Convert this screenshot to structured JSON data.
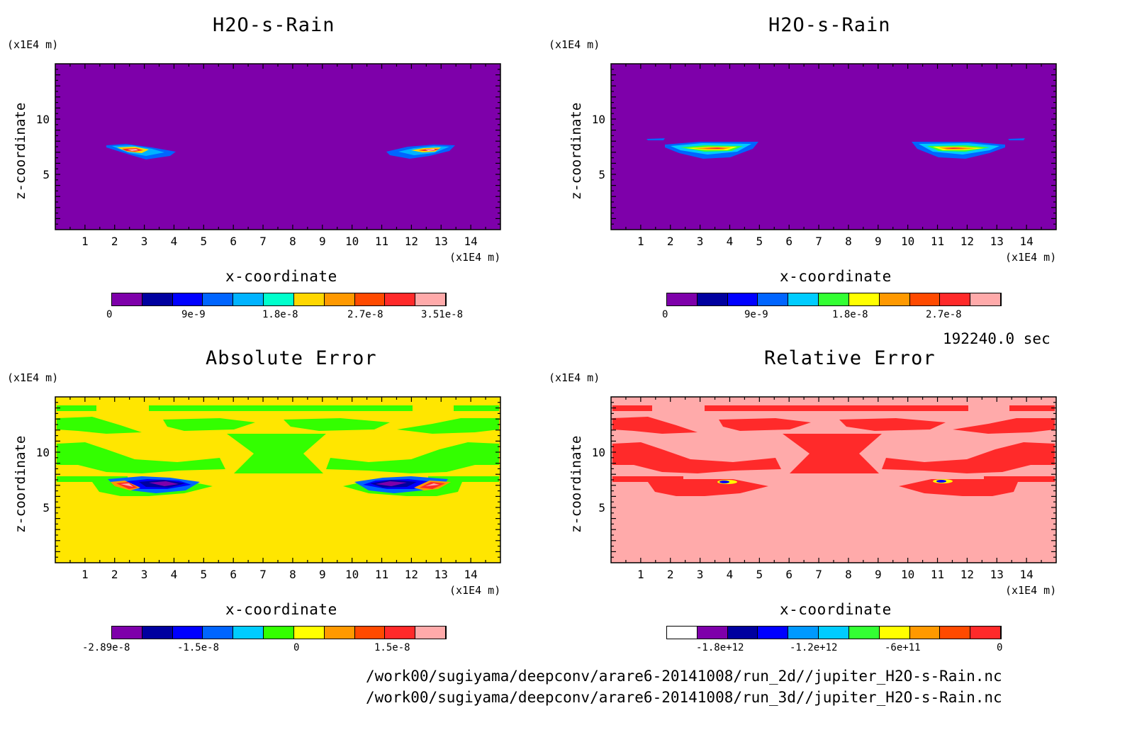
{
  "chart_data": [
    {
      "type": "heatmap",
      "title": "H2O-s-Rain",
      "xlabel": "x-coordinate",
      "ylabel": "z-coordinate",
      "x_unit": "(x1E4 m)",
      "y_unit": "(x1E4 m)",
      "xlim": [
        0,
        15
      ],
      "ylim": [
        0,
        15
      ],
      "x_ticks": [
        "1",
        "2",
        "3",
        "4",
        "5",
        "6",
        "7",
        "8",
        "9",
        "10",
        "11",
        "12",
        "13",
        "14"
      ],
      "y_ticks": [
        "5",
        "10"
      ],
      "background_color": "#7e00aa",
      "colorbar": {
        "colors": [
          "#7e00aa",
          "#00009f",
          "#0000ff",
          "#0065ff",
          "#00b3ff",
          "#00ffcc",
          "#ffd700",
          "#ff9900",
          "#ff4a00",
          "#ff2a2a",
          "#ffaaaa"
        ],
        "tick_labels": [
          "0",
          "9e-9",
          "1.8e-8",
          "2.7e-8",
          "3.51e-8"
        ]
      },
      "features": [
        {
          "x_center": 3.0,
          "z": 7.0,
          "x_range": [
            1.7,
            4.0
          ],
          "z_range": [
            6.3,
            7.7
          ],
          "peak": "3.51e-8"
        },
        {
          "x_center": 12.3,
          "z": 7.0,
          "x_range": [
            11.0,
            13.3
          ],
          "z_range": [
            6.3,
            7.7
          ],
          "peak": "3.51e-8"
        }
      ]
    },
    {
      "type": "heatmap",
      "title": "H2O-s-Rain",
      "xlabel": "x-coordinate",
      "ylabel": "z-coordinate",
      "x_unit": "(x1E4 m)",
      "y_unit": "(x1E4 m)",
      "xlim": [
        0,
        15
      ],
      "ylim": [
        0,
        15
      ],
      "x_ticks": [
        "1",
        "2",
        "3",
        "4",
        "5",
        "6",
        "7",
        "8",
        "9",
        "10",
        "11",
        "12",
        "13",
        "14"
      ],
      "y_ticks": [
        "5",
        "10"
      ],
      "background_color": "#7e00aa",
      "colorbar": {
        "colors": [
          "#7e00aa",
          "#00009f",
          "#0000ff",
          "#0065ff",
          "#00ccff",
          "#33ff33",
          "#ffff00",
          "#ff9900",
          "#ff4a00",
          "#ff2a2a",
          "#ffaaaa"
        ],
        "tick_labels": [
          "0",
          "9e-9",
          "1.8e-8",
          "2.7e-8"
        ]
      },
      "features": [
        {
          "x_center": 3.5,
          "z": 7.2,
          "x_range": [
            1.8,
            5.2
          ],
          "z_range": [
            6.4,
            7.8
          ]
        },
        {
          "x_center": 11.5,
          "z": 7.2,
          "x_range": [
            10.0,
            13.4
          ],
          "z_range": [
            6.4,
            7.8
          ]
        }
      ]
    },
    {
      "type": "heatmap",
      "title": "Absolute Error",
      "xlabel": "x-coordinate",
      "ylabel": "z-coordinate",
      "x_unit": "(x1E4 m)",
      "y_unit": "(x1E4 m)",
      "xlim": [
        0,
        15
      ],
      "ylim": [
        0,
        15
      ],
      "x_ticks": [
        "1",
        "2",
        "3",
        "4",
        "5",
        "6",
        "7",
        "8",
        "9",
        "10",
        "11",
        "12",
        "13",
        "14"
      ],
      "y_ticks": [
        "5",
        "10"
      ],
      "background_color": "#ffe600",
      "colorbar": {
        "colors": [
          "#7e00aa",
          "#00009f",
          "#0000ff",
          "#0065ff",
          "#00ccff",
          "#33ff00",
          "#ffff00",
          "#ff9900",
          "#ff4a00",
          "#ff2a2a",
          "#ffaaaa"
        ],
        "tick_labels": [
          "-2.89e-8",
          "-1.5e-8",
          "0",
          "1.5e-8"
        ]
      }
    },
    {
      "type": "heatmap",
      "title": "Relative Error",
      "xlabel": "x-coordinate",
      "ylabel": "z-coordinate",
      "x_unit": "(x1E4 m)",
      "y_unit": "(x1E4 m)",
      "xlim": [
        0,
        15
      ],
      "ylim": [
        0,
        15
      ],
      "x_ticks": [
        "1",
        "2",
        "3",
        "4",
        "5",
        "6",
        "7",
        "8",
        "9",
        "10",
        "11",
        "12",
        "13",
        "14"
      ],
      "y_ticks": [
        "5",
        "10"
      ],
      "background_color": "#ffaaaa",
      "colorbar": {
        "colors": [
          "#ffffff",
          "#7e00aa",
          "#00009f",
          "#0000ff",
          "#0099ff",
          "#00ccff",
          "#33ff33",
          "#ffff00",
          "#ff9900",
          "#ff4a00",
          "#ff2a2a"
        ],
        "tick_labels": [
          "-1.8e+12",
          "-1.2e+12",
          "-6e+11",
          "0"
        ]
      }
    }
  ],
  "time_label": "192240.0 sec",
  "file_paths": [
    "/work00/sugiyama/deepconv/arare6-20141008/run_2d//jupiter_H2O-s-Rain.nc",
    "/work00/sugiyama/deepconv/arare6-20141008/run_3d//jupiter_H2O-s-Rain.nc"
  ]
}
